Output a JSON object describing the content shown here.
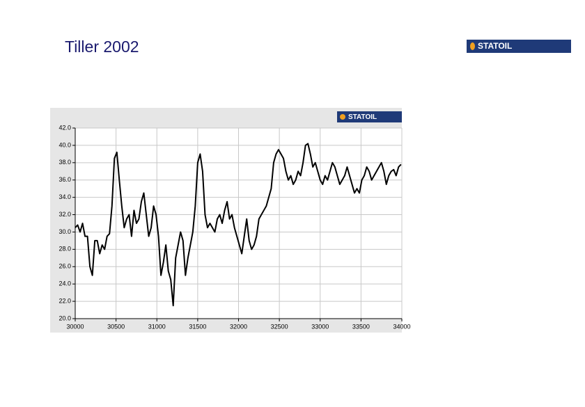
{
  "header": {
    "title": "Tiller 2002",
    "logo": "STATOIL"
  },
  "chart_data": {
    "type": "line",
    "logo": "STATOIL",
    "color": "#000000",
    "grid": true,
    "xlim": [
      30000,
      34000
    ],
    "xticks": [
      30000,
      30500,
      31000,
      31500,
      32000,
      32500,
      33000,
      33500,
      34000
    ],
    "ylim": [
      20,
      42
    ],
    "yticks": [
      {
        "value": 20,
        "label": "20.0"
      },
      {
        "value": 22,
        "label": "22.0"
      },
      {
        "value": 24,
        "label": "24.0"
      },
      {
        "value": 26,
        "label": "26.0"
      },
      {
        "value": 28,
        "label": "28.0"
      },
      {
        "value": 30,
        "label": "30.0"
      },
      {
        "value": 32,
        "label": "32.0"
      },
      {
        "value": 34,
        "label": "34.0"
      },
      {
        "value": 36,
        "label": "36.0"
      },
      {
        "value": 38,
        "label": "38.0"
      },
      {
        "value": 40,
        "label": "40.0"
      },
      {
        "value": 42,
        "label": "42.0"
      }
    ],
    "x": [
      30000,
      30030,
      30060,
      30090,
      30120,
      30150,
      30180,
      30210,
      30240,
      30270,
      30300,
      30330,
      30360,
      30390,
      30420,
      30450,
      30480,
      30510,
      30540,
      30570,
      30600,
      30630,
      30660,
      30690,
      30720,
      30750,
      30780,
      30810,
      30840,
      30870,
      30900,
      30930,
      30960,
      30990,
      31020,
      31050,
      31080,
      31110,
      31140,
      31170,
      31200,
      31230,
      31260,
      31290,
      31320,
      31350,
      31380,
      31410,
      31440,
      31470,
      31500,
      31530,
      31560,
      31590,
      31620,
      31650,
      31680,
      31710,
      31740,
      31770,
      31800,
      31830,
      31860,
      31890,
      31920,
      31950,
      31980,
      32010,
      32040,
      32070,
      32100,
      32130,
      32160,
      32190,
      32220,
      32250,
      32280,
      32310,
      32340,
      32370,
      32400,
      32430,
      32460,
      32490,
      32520,
      32550,
      32580,
      32610,
      32640,
      32670,
      32700,
      32730,
      32760,
      32790,
      32820,
      32850,
      32880,
      32910,
      32940,
      32970,
      33000,
      33030,
      33060,
      33090,
      33120,
      33150,
      33180,
      33210,
      33240,
      33270,
      33300,
      33330,
      33360,
      33390,
      33420,
      33450,
      33480,
      33510,
      33540,
      33570,
      33600,
      33630,
      33660,
      33690,
      33720,
      33750,
      33780,
      33810,
      33840,
      33870,
      33900,
      33930,
      33960,
      33990
    ],
    "values": [
      30.5,
      30.8,
      30,
      31,
      29.5,
      29.5,
      26,
      25,
      29,
      29,
      27.5,
      28.5,
      28,
      29.5,
      29.8,
      33,
      38.5,
      39.2,
      36,
      33,
      30.5,
      31.5,
      32,
      29.5,
      32.5,
      31,
      31.5,
      33.5,
      34.5,
      32,
      29.5,
      30.5,
      33,
      32,
      29.5,
      25,
      26.5,
      28.5,
      25.5,
      24.5,
      21.5,
      27,
      28.5,
      30,
      29,
      25,
      27,
      28.5,
      30,
      33,
      38,
      39,
      37,
      32,
      30.5,
      31,
      30.5,
      30,
      31.5,
      32,
      31,
      32.5,
      33.5,
      31.5,
      32,
      30.5,
      29.5,
      28.5,
      27.5,
      29.5,
      31.5,
      29,
      28,
      28.5,
      29.5,
      31.5,
      32,
      32.5,
      33,
      34,
      35,
      38,
      39,
      39.5,
      39,
      38.5,
      37,
      36,
      36.5,
      35.5,
      36,
      37,
      36.5,
      38,
      40,
      40.2,
      39,
      37.5,
      38,
      37,
      36,
      35.5,
      36.5,
      36,
      37,
      38,
      37.5,
      36.5,
      35.5,
      36,
      36.5,
      37.5,
      36.5,
      35.5,
      34.5,
      35,
      34.5,
      36,
      36.5,
      37.5,
      37,
      36,
      36.5,
      37,
      37.5,
      38,
      37,
      35.5,
      36.5,
      37,
      37.2,
      36.5,
      37.5,
      37.8
    ]
  }
}
